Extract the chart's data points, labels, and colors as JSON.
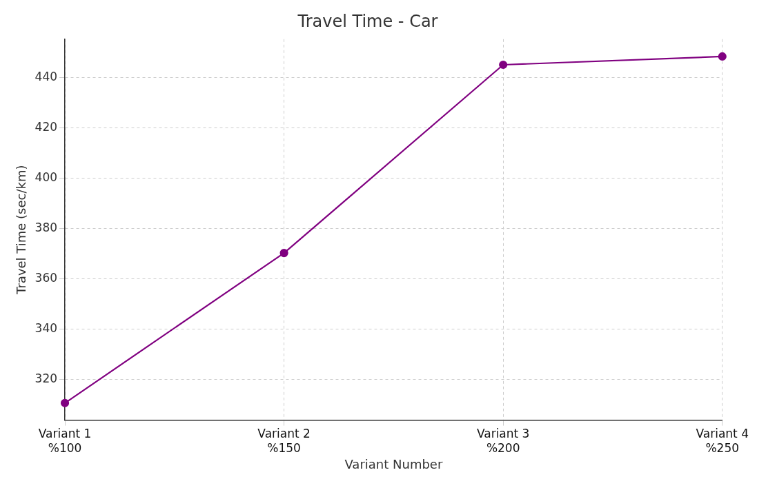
{
  "chart_data": {
    "type": "line",
    "title": "Travel Time - Car",
    "xlabel": "Variant Number",
    "ylabel": "Travel Time (sec/km)",
    "categories": [
      "Variant 1\n%100",
      "Variant 2\n%150",
      "Variant 3\n%200",
      "Variant 4\n%250"
    ],
    "series": [
      {
        "color": "#800080",
        "values": [
          310.5,
          370.2,
          445.1,
          448.4
        ]
      }
    ],
    "ylim": [
      303.7,
      455.3
    ],
    "yticks": [
      320,
      340,
      360,
      380,
      400,
      420,
      440
    ],
    "grid": true,
    "legend": false,
    "marker": "circle",
    "line_style": "solid"
  }
}
